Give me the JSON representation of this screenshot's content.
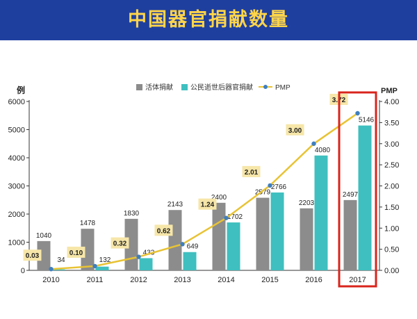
{
  "header": {
    "title": "中国器官捐献数量"
  },
  "colors": {
    "header_bg": "#1f3f9f",
    "title": "#ffd54a",
    "living": "#8c8c8c",
    "deceased": "#3fbfbf",
    "pmp": "#e8c334",
    "pmp_marker": "#3f7fbf",
    "pmp_label_bg": "#f6e6a8",
    "highlight": "#d9241c"
  },
  "chart_data": {
    "type": "bar",
    "categories": [
      "2010",
      "2011",
      "2012",
      "2013",
      "2014",
      "2015",
      "2016",
      "2017"
    ],
    "series": [
      {
        "name": "活体捐献",
        "type": "bar",
        "axis": "left",
        "values": [
          1040,
          1478,
          1830,
          2143,
          2400,
          2579,
          2203,
          2497
        ]
      },
      {
        "name": "公民逝世后器官捐献",
        "type": "bar",
        "axis": "left",
        "values": [
          34,
          132,
          433,
          649,
          1702,
          2766,
          4080,
          5146
        ]
      },
      {
        "name": "PMP",
        "type": "line",
        "axis": "right",
        "values": [
          0.03,
          0.1,
          0.32,
          0.62,
          1.24,
          2.01,
          3.0,
          3.72
        ]
      }
    ],
    "bar_labels": {
      "living": [
        "1040",
        "1478",
        "1830",
        "2143",
        "2400",
        "2579",
        "2203",
        "2497"
      ],
      "deceased": [
        "34",
        "132",
        "433",
        "649",
        "1702",
        "2766",
        "4080",
        "5146"
      ]
    },
    "pmp_labels": [
      "0.03",
      "0.10",
      "0.32",
      "0.62",
      "1.24",
      "2.01",
      "3.00",
      "3.72"
    ],
    "ylabel": "例",
    "y2label": "PMP",
    "ylim": [
      0,
      6000
    ],
    "y2lim": [
      0,
      4
    ],
    "yticks": [
      "0",
      "1000",
      "2000",
      "3000",
      "4000",
      "5000",
      "6000"
    ],
    "y2ticks": [
      "0.00",
      "0.50",
      "1.00",
      "1.50",
      "2.00",
      "2.50",
      "3.00",
      "3.50",
      "4.00"
    ],
    "legend": [
      "活体捐献",
      "公民逝世后器官捐献",
      "PMP"
    ],
    "legend_position": "top",
    "highlight_category": "2017",
    "grid": false
  }
}
